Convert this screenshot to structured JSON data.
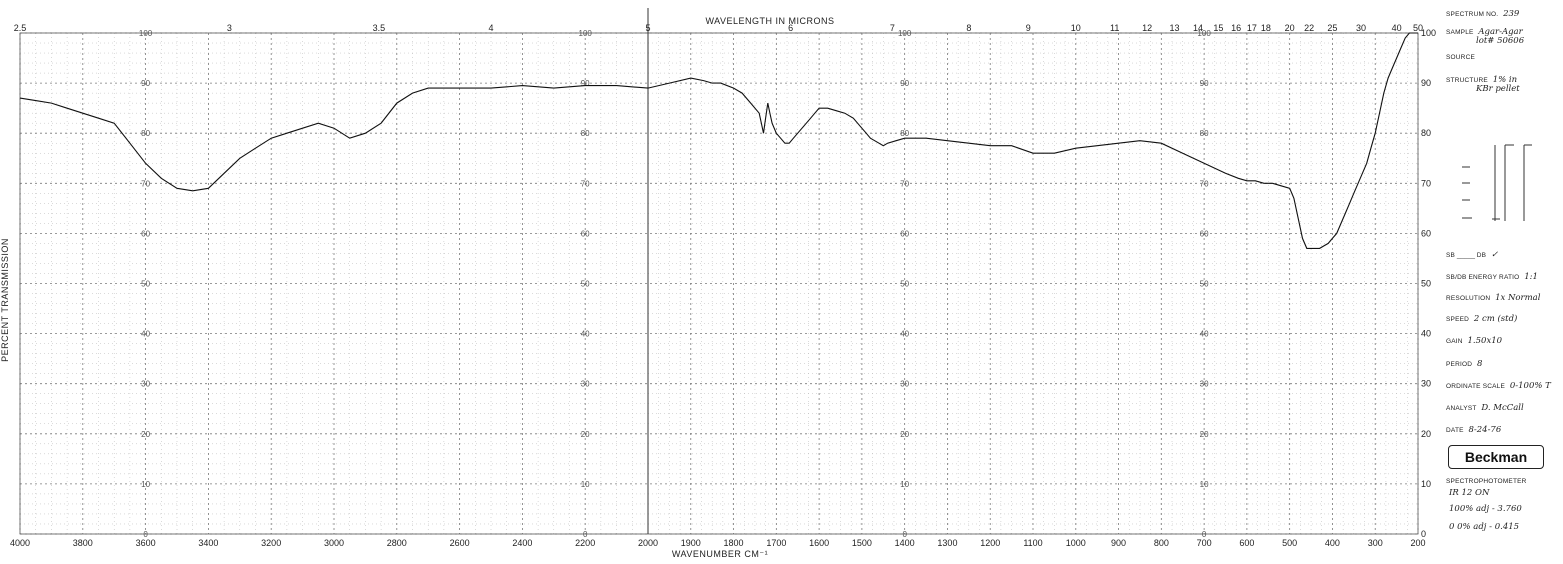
{
  "chart_data": {
    "type": "line",
    "title": "WAVELENGTH IN MICRONS",
    "xlabel": "WAVENUMBER CM⁻¹",
    "ylabel": "PERCENT TRANSMISSION",
    "x_axis": "wavenumber_cm-1",
    "xlim": [
      4000,
      200
    ],
    "ylim": [
      0,
      100
    ],
    "x_ticks": [
      4000,
      3800,
      3600,
      3400,
      3200,
      3000,
      2800,
      2600,
      2400,
      2200,
      2000,
      1900,
      1800,
      1700,
      1600,
      1500,
      1400,
      1300,
      1200,
      1100,
      1000,
      900,
      800,
      700,
      600,
      500,
      400,
      300,
      200
    ],
    "x_tick_labels": [
      "4000",
      "3800",
      "3600",
      "3400",
      "3200",
      "3000",
      "2800",
      "2600",
      "2400",
      "2200",
      "2000",
      "1900",
      "1800",
      "1700",
      "1600",
      "1500",
      "1400",
      "1300",
      "1200",
      "1100",
      "1000",
      "900",
      "800",
      "700",
      "600",
      "500",
      "400",
      "300",
      "200"
    ],
    "top_ticks": [
      {
        "label": "2.5",
        "micron": 2.5
      },
      {
        "label": "3",
        "micron": 3
      },
      {
        "label": "3.5",
        "micron": 3.5
      },
      {
        "label": "4",
        "micron": 4
      },
      {
        "label": "5",
        "micron": 5
      },
      {
        "label": "6",
        "micron": 6
      },
      {
        "label": "7",
        "micron": 7
      },
      {
        "label": "8",
        "micron": 8
      },
      {
        "label": "9",
        "micron": 9
      },
      {
        "label": "10",
        "micron": 10
      },
      {
        "label": "11",
        "micron": 11
      },
      {
        "label": "12",
        "micron": 12
      },
      {
        "label": "13",
        "micron": 13
      },
      {
        "label": "14",
        "micron": 14
      },
      {
        "label": "15",
        "micron": 15
      },
      {
        "label": "16",
        "micron": 16
      },
      {
        "label": "17",
        "micron": 17
      },
      {
        "label": "18",
        "micron": 18
      },
      {
        "label": "20",
        "micron": 20
      },
      {
        "label": "22",
        "micron": 22
      },
      {
        "label": "25",
        "micron": 25
      },
      {
        "label": "30",
        "micron": 30
      },
      {
        "label": "40",
        "micron": 40
      },
      {
        "label": "50",
        "micron": 50
      }
    ],
    "y_ticks": [
      0,
      10,
      20,
      30,
      40,
      50,
      60,
      70,
      80,
      90,
      100
    ],
    "y_tick_labels": [
      "0",
      "10",
      "20",
      "30",
      "40",
      "50",
      "60",
      "70",
      "80",
      "90",
      "100"
    ],
    "inner_label_columns": [
      3600,
      2200,
      1400,
      700
    ],
    "grid": true,
    "series": [
      {
        "x": [
          4000,
          3950,
          3900,
          3850,
          3800,
          3750,
          3700,
          3650,
          3600,
          3550,
          3500,
          3450,
          3400,
          3350,
          3300,
          3250,
          3200,
          3150,
          3100,
          3050,
          3000,
          2950,
          2900,
          2850,
          2800,
          2750,
          2700,
          2600,
          2500,
          2400,
          2300,
          2200,
          2100,
          2000,
          1950,
          1900,
          1870,
          1850,
          1830,
          1800,
          1780,
          1760,
          1740,
          1730,
          1725,
          1720,
          1715,
          1710,
          1700,
          1690,
          1680,
          1670,
          1660,
          1650,
          1640,
          1630,
          1620,
          1610,
          1600,
          1590,
          1580,
          1560,
          1540,
          1520,
          1510,
          1500,
          1490,
          1480,
          1470,
          1460,
          1450,
          1440,
          1420,
          1400,
          1380,
          1350,
          1300,
          1250,
          1200,
          1150,
          1100,
          1050,
          1000,
          950,
          900,
          850,
          800,
          750,
          700,
          650,
          620,
          600,
          580,
          560,
          540,
          520,
          500,
          490,
          480,
          470,
          460,
          450,
          440,
          430,
          420,
          410,
          400,
          390,
          380,
          370,
          360,
          350,
          340,
          330,
          320,
          310,
          300,
          290,
          280,
          270,
          260,
          250,
          240,
          230,
          220,
          210,
          200
        ],
        "y": [
          87,
          86.5,
          86,
          85,
          84,
          83,
          82,
          78,
          74,
          71,
          69,
          68.5,
          69,
          72,
          75,
          77,
          79,
          80,
          81,
          82,
          81,
          79,
          80,
          82,
          86,
          88,
          89,
          89,
          89,
          89.5,
          89,
          89.5,
          89.5,
          89,
          90,
          91,
          90.5,
          90,
          90,
          89,
          88,
          86,
          84,
          80,
          83,
          86,
          84,
          82,
          80,
          79,
          78,
          78,
          79,
          80,
          81,
          82,
          83,
          84,
          85,
          85,
          85,
          84.5,
          84,
          83,
          82,
          81,
          80,
          79,
          78.5,
          78,
          77.5,
          78,
          78.5,
          79,
          79,
          79,
          78.5,
          78,
          77.5,
          77.5,
          76,
          76,
          77,
          77.5,
          78,
          78.5,
          78,
          76,
          74,
          72,
          71,
          70.5,
          70.5,
          70,
          70,
          69.5,
          69,
          67,
          63,
          59,
          57,
          57,
          57,
          57,
          57.5,
          58,
          59,
          60,
          62,
          64,
          66,
          68,
          70,
          72,
          74,
          77,
          80,
          84,
          88,
          91,
          93,
          95,
          97,
          99,
          100,
          100,
          100
        ]
      }
    ]
  },
  "sidebar": {
    "spectrum_no_label": "SPECTRUM NO.",
    "spectrum_no_value": "239",
    "sample_label": "SAMPLE",
    "sample_value": "Agar-Agar",
    "sample_value_2": "lot# 50606",
    "source_label": "SOURCE",
    "structure_label": "STRUCTURE",
    "structure_value": "1% in",
    "structure_value_2": "KBr pellet",
    "sb_label": "SB",
    "db_label": "DB",
    "db_value": "✓",
    "energy_ratio_label": "SB/DB ENERGY RATIO",
    "energy_ratio_value": "1:1",
    "resolution_label": "RESOLUTION",
    "resolution_value": "1x Normal",
    "speed_label": "SPEED",
    "speed_value": "2 cm (std)",
    "gain_label": "GAIN",
    "gain_value": "1.50x10",
    "period_label": "PERIOD",
    "period_value": "8",
    "ordinate_label": "ORDINATE SCALE",
    "ordinate_value": "0-100% T",
    "analyst_label": "ANALYST",
    "analyst_value": "D. McCall",
    "date_label": "DATE",
    "date_value": "8-24-76",
    "brand": "Beckman",
    "instrument_label": "SPECTROPHOTOMETER",
    "instrument_value": "IR 12  ON",
    "note_1": "100% adj - 3.760",
    "note_2": "0 0% adj - 0.415"
  }
}
